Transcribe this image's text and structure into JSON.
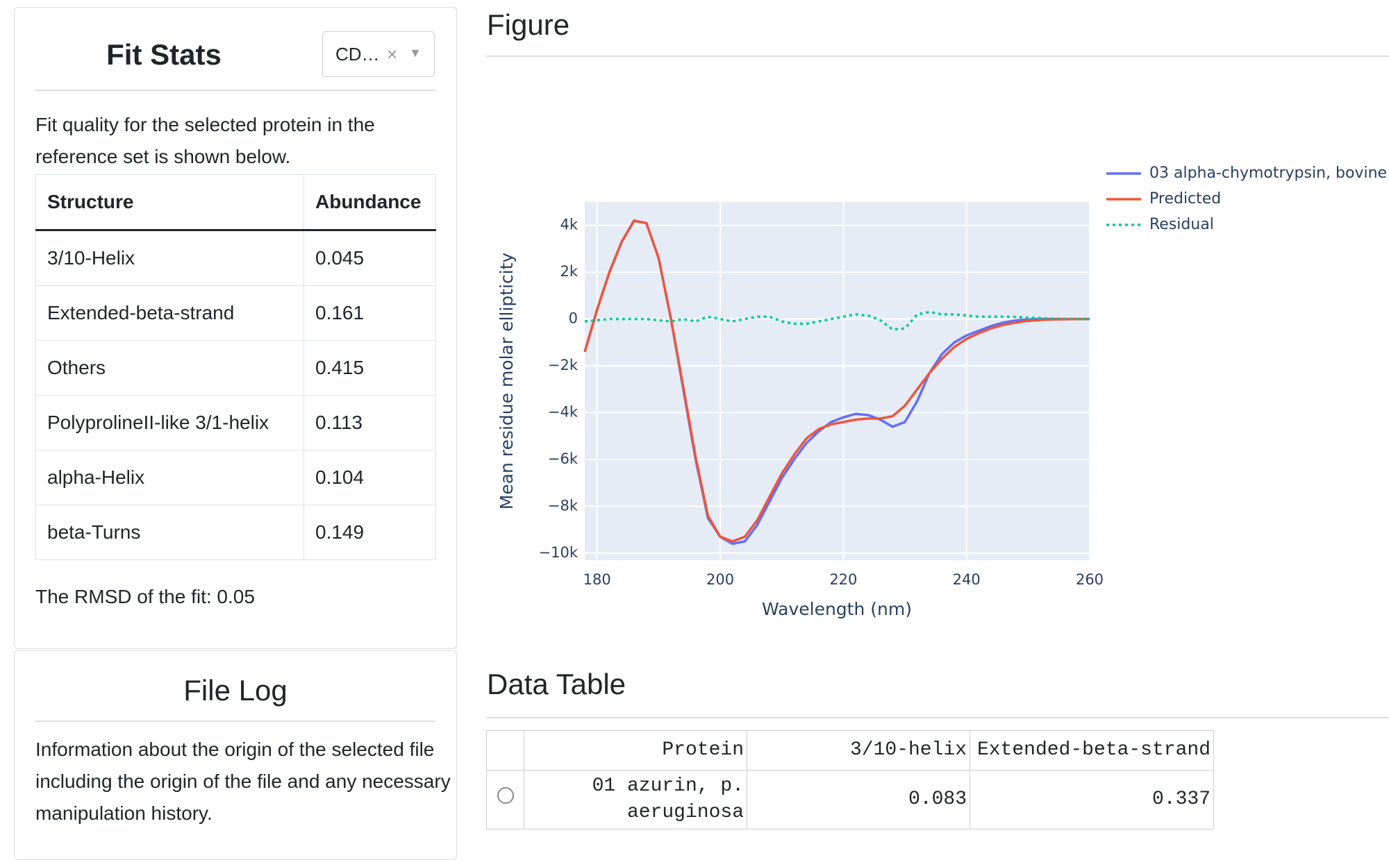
{
  "fit_stats": {
    "title": "Fit Stats",
    "dropdown": "CD…",
    "description": "Fit quality for the selected protein in the reference set is shown below.",
    "table": {
      "headers": [
        "Structure",
        "Abundance"
      ],
      "rows": [
        [
          "3/10-Helix",
          0.045
        ],
        [
          "Extended-beta-strand",
          0.161
        ],
        [
          "Others",
          0.415
        ],
        [
          "PolyprolineII-like 3/1-helix",
          0.113
        ],
        [
          "alpha-Helix",
          0.104
        ],
        [
          "beta-Turns",
          0.149
        ]
      ]
    },
    "rmsd": "The RMSD of the fit: 0.05"
  },
  "file_log": {
    "title": "File Log",
    "description": "Information about the origin of the selected file including the origin of the file and any necessary manipulation history."
  },
  "figure": {
    "title": "Figure"
  },
  "chart_data": {
    "type": "line",
    "x_label": "Wavelength (nm)",
    "y_label": "Mean residue molar ellipticity",
    "x": [
      178,
      180,
      182,
      184,
      186,
      188,
      190,
      192,
      194,
      196,
      198,
      200,
      202,
      204,
      206,
      208,
      210,
      212,
      214,
      216,
      218,
      220,
      222,
      224,
      226,
      228,
      230,
      232,
      234,
      236,
      238,
      240,
      242,
      244,
      246,
      248,
      250,
      252,
      254,
      256,
      258,
      260
    ],
    "series": [
      {
        "name": "03 alpha-chymotrypsin, bovine",
        "color": "#636efa",
        "dash": "solid",
        "values": [
          -1400,
          400,
          2000,
          3300,
          4200,
          4100,
          2600,
          0,
          -3000,
          -6000,
          -8500,
          -9300,
          -9600,
          -9500,
          -8800,
          -7800,
          -6800,
          -6000,
          -5300,
          -4800,
          -4400,
          -4200,
          -4050,
          -4100,
          -4300,
          -4600,
          -4400,
          -3500,
          -2300,
          -1500,
          -1000,
          -700,
          -500,
          -300,
          -150,
          -60,
          -20,
          0,
          0,
          0,
          0,
          0
        ]
      },
      {
        "name": "Predicted",
        "color": "#ef553b",
        "dash": "solid",
        "values": [
          -1400,
          400,
          2000,
          3300,
          4200,
          4100,
          2600,
          0,
          -2900,
          -5900,
          -8400,
          -9300,
          -9500,
          -9300,
          -8600,
          -7600,
          -6600,
          -5800,
          -5100,
          -4700,
          -4500,
          -4400,
          -4300,
          -4250,
          -4250,
          -4150,
          -3700,
          -3000,
          -2300,
          -1700,
          -1200,
          -850,
          -600,
          -400,
          -250,
          -150,
          -80,
          -40,
          -20,
          -10,
          0,
          0
        ]
      },
      {
        "name": "Residual",
        "color": "#00cc96",
        "dash": "dot",
        "values": [
          -100,
          -50,
          0,
          0,
          0,
          0,
          -50,
          -100,
          0,
          -100,
          100,
          0,
          -100,
          0,
          100,
          100,
          -100,
          -200,
          -200,
          -100,
          0,
          100,
          200,
          150,
          -50,
          -450,
          -400,
          200,
          300,
          200,
          200,
          150,
          100,
          100,
          100,
          90,
          60,
          40,
          20,
          10,
          0,
          0
        ]
      }
    ],
    "xlim": [
      178,
      260
    ],
    "ylim": [
      -10300,
      5000
    ],
    "xticks": [
      180,
      200,
      220,
      240,
      260
    ],
    "yticks": [
      {
        "value": -10000,
        "label": "−10k"
      },
      {
        "value": -8000,
        "label": "−8k"
      },
      {
        "value": -6000,
        "label": "−6k"
      },
      {
        "value": -4000,
        "label": "−4k"
      },
      {
        "value": -2000,
        "label": "−2k"
      },
      0,
      {
        "value": 2000,
        "label": "2k"
      },
      {
        "value": 4000,
        "label": "4k"
      }
    ],
    "grid": true,
    "legend": "right",
    "plot_background": "#e5ecf6"
  },
  "data_table": {
    "title": "Data Table",
    "headers": [
      "Protein",
      "3/10-helix",
      "Extended-beta-strand"
    ],
    "rows": [
      [
        "01 azurin, p. aeruginosa",
        0.083,
        0.337
      ]
    ]
  }
}
